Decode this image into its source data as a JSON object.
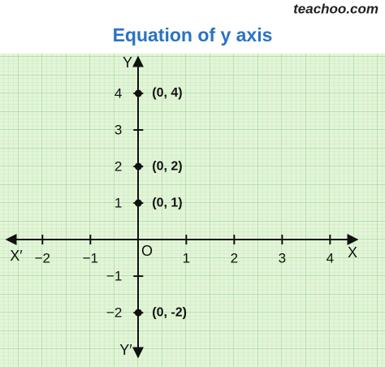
{
  "watermark": "teachoo.com",
  "chart_data": {
    "type": "scatter",
    "title": "Equation of y axis",
    "x": [
      0,
      0,
      0,
      0
    ],
    "values": [
      4,
      2,
      1,
      -2
    ],
    "value_labels": [
      "(0, 4)",
      "(0, 2)",
      "(0, 1)",
      "(0, -2)"
    ],
    "color": "#111111",
    "xlim": [
      -2.75,
      4.57
    ],
    "ylim": [
      -3.22,
      5
    ],
    "xticks": [
      {
        "value": -2,
        "label": "−2"
      },
      {
        "value": -1,
        "label": "−1"
      },
      1,
      2,
      3,
      4
    ],
    "yticks": [
      4,
      3,
      2,
      1,
      {
        "value": -1,
        "label": "−1"
      },
      {
        "value": -2,
        "label": "−2"
      }
    ],
    "origin_label": "O",
    "axis_labels": {
      "x": "X",
      "x_neg": "X′",
      "y": "Y",
      "y_neg": "Y′"
    }
  }
}
